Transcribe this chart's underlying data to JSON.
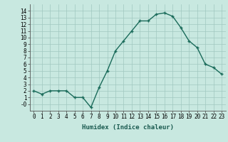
{
  "x": [
    0,
    1,
    2,
    3,
    4,
    5,
    6,
    7,
    8,
    9,
    10,
    11,
    12,
    13,
    14,
    15,
    16,
    17,
    18,
    19,
    20,
    21,
    22,
    23
  ],
  "y": [
    2,
    1.5,
    2,
    2,
    2,
    1,
    1,
    -0.5,
    2.5,
    5,
    8,
    9.5,
    11,
    12.5,
    12.5,
    13.5,
    13.7,
    13.2,
    11.5,
    9.5,
    8.5,
    6,
    5.5,
    4.5
  ],
  "line_color": "#1a6b5a",
  "marker": "+",
  "marker_size": 3.5,
  "linewidth": 1.0,
  "bg_color": "#c8e8e0",
  "grid_color": "#a0c8c0",
  "xlabel": "Humidex (Indice chaleur)",
  "ylim": [
    -1,
    15
  ],
  "xlim": [
    -0.5,
    23.5
  ],
  "yticks": [
    0,
    1,
    2,
    3,
    4,
    5,
    6,
    7,
    8,
    9,
    10,
    11,
    12,
    13,
    14
  ],
  "xticks": [
    0,
    1,
    2,
    3,
    4,
    5,
    6,
    7,
    8,
    9,
    10,
    11,
    12,
    13,
    14,
    15,
    16,
    17,
    18,
    19,
    20,
    21,
    22,
    23
  ],
  "xlabel_fontsize": 6.5,
  "tick_fontsize": 5.5
}
